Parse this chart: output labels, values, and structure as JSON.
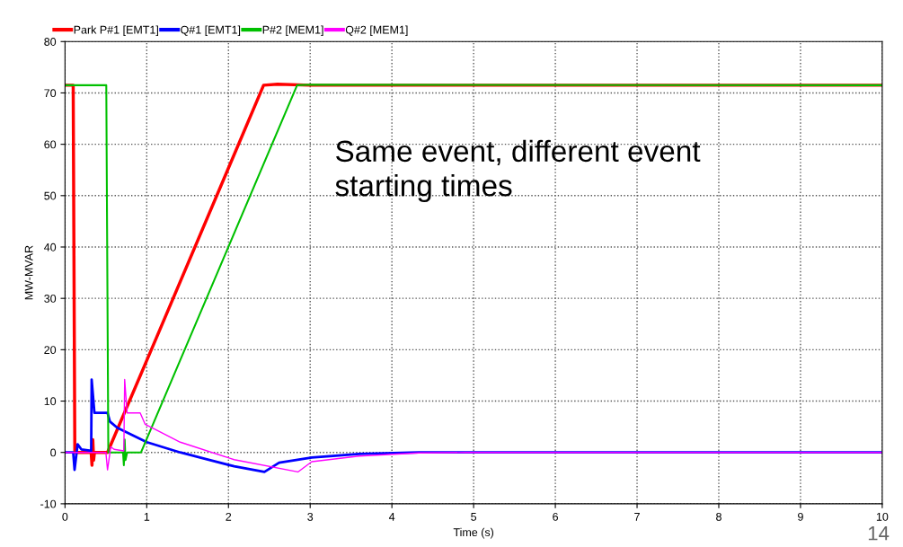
{
  "chart_data": {
    "type": "line",
    "xlabel": "Time (s)",
    "ylabel": "MW-MVAR",
    "xlim": [
      0,
      10
    ],
    "xticks": [
      0,
      1,
      2,
      3,
      4,
      5,
      6,
      7,
      8,
      9,
      10
    ],
    "ylim": [
      -10,
      80
    ],
    "yticks": [
      -10,
      0,
      10,
      20,
      30,
      40,
      50,
      60,
      70,
      80
    ],
    "grid": true,
    "legend": "top left",
    "line_style": "solid",
    "marker": "none",
    "annotations": [
      "Same event, different event\nstarting times",
      "14"
    ],
    "series": [
      {
        "name": "Park P#1 [EMT1]",
        "color": "#ff0000",
        "x": [
          0,
          0.1,
          0.12,
          0.32,
          0.33,
          0.34,
          0.35,
          0.36,
          0.52,
          1.11,
          2.43,
          2.6,
          3.0,
          10
        ],
        "values": [
          71.5,
          71.5,
          0,
          0,
          -2.5,
          2.5,
          -1.5,
          0,
          0,
          22,
          71.5,
          71.7,
          71.5,
          71.5
        ]
      },
      {
        "name": "Q#1 [EMT1]",
        "color": "#0000ff",
        "x": [
          0,
          0.1,
          0.117,
          0.154,
          0.2,
          0.32,
          0.326,
          0.36,
          0.52,
          0.55,
          0.64,
          1.0,
          1.41,
          2.07,
          2.44,
          2.62,
          3.02,
          3.6,
          4.33,
          10
        ],
        "values": [
          0,
          0,
          -3.4,
          1.6,
          0.6,
          0.3,
          14.2,
          7.7,
          7.7,
          6.0,
          4.8,
          2.0,
          0,
          -2.7,
          -3.8,
          -2.0,
          -1.0,
          -0.3,
          0,
          0
        ]
      },
      {
        "name": "P#2 [MEM1]",
        "color": "#00c000",
        "x": [
          0,
          0.505,
          0.53,
          0.71,
          0.72,
          0.73,
          0.74,
          0.76,
          0.93,
          2.84,
          3.0,
          10
        ],
        "values": [
          71.5,
          71.5,
          0,
          0,
          -2.5,
          2.5,
          -1.5,
          0,
          0,
          71.5,
          71.6,
          71.5
        ]
      },
      {
        "name": "Q#2 [MEM1]",
        "color": "#ff00ff",
        "x": [
          0,
          0.5,
          0.52,
          0.56,
          0.6,
          0.72,
          0.73,
          0.76,
          0.92,
          0.98,
          1.1,
          1.41,
          1.99,
          2.07,
          2.85,
          3.02,
          3.6,
          4.33,
          4.9,
          10
        ],
        "values": [
          0,
          0,
          -3.4,
          1.1,
          0.6,
          0.3,
          14.2,
          7.7,
          7.7,
          5.5,
          4.5,
          2.0,
          -1.0,
          -1.4,
          -3.8,
          -1.8,
          -0.7,
          -0.1,
          0,
          0
        ]
      }
    ]
  }
}
